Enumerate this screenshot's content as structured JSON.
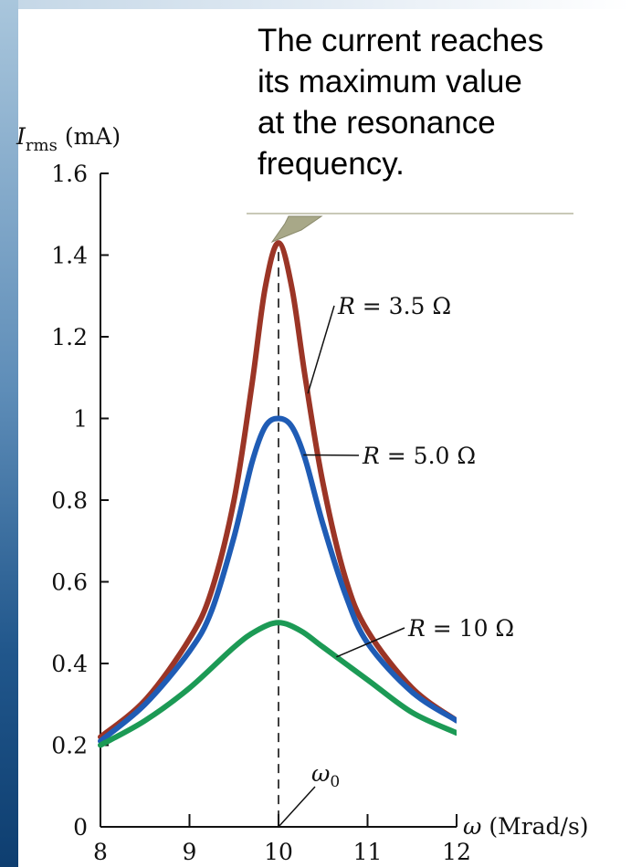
{
  "chart_data": {
    "type": "line",
    "xlabel": "ω (Mrad/s)",
    "ylabel_symbol": "I",
    "ylabel_sub": "rms",
    "ylabel_unit": "(mA)",
    "xlim": [
      8,
      12
    ],
    "ylim": [
      0,
      1.6
    ],
    "xticks": [
      8,
      9,
      10,
      11,
      12
    ],
    "xtick_labels": [
      "8",
      "9",
      "10",
      "11",
      "12"
    ],
    "yticks": [
      0,
      0.2,
      0.4,
      0.6,
      0.8,
      1,
      1.2,
      1.4,
      1.6
    ],
    "ytick_labels": [
      "0",
      "0.2",
      "0.4",
      "0.6",
      "0.8",
      "1",
      "1.2",
      "1.4",
      "1.6"
    ],
    "grid": false,
    "resonance": {
      "x": 10,
      "label_symbol": "ω",
      "label_sub": "0"
    },
    "series": [
      {
        "name": "R = 3.5 Ω",
        "color": "#9b3526",
        "x": [
          8,
          8.5,
          9,
          9.25,
          9.5,
          9.7,
          9.85,
          10,
          10.15,
          10.3,
          10.5,
          10.75,
          11,
          11.5,
          12
        ],
        "values": [
          0.22,
          0.31,
          0.46,
          0.58,
          0.8,
          1.08,
          1.32,
          1.43,
          1.32,
          1.1,
          0.84,
          0.61,
          0.48,
          0.34,
          0.26
        ]
      },
      {
        "name": "R = 5.0 Ω",
        "color": "#1f5cb5",
        "x": [
          8,
          8.5,
          9,
          9.25,
          9.5,
          9.7,
          9.85,
          10,
          10.15,
          10.3,
          10.5,
          10.75,
          11,
          11.5,
          12
        ],
        "values": [
          0.21,
          0.3,
          0.43,
          0.53,
          0.71,
          0.89,
          0.98,
          1.0,
          0.98,
          0.9,
          0.74,
          0.57,
          0.45,
          0.33,
          0.26
        ]
      },
      {
        "name": "R = 10 Ω",
        "color": "#1c9a55",
        "x": [
          8,
          8.5,
          9,
          9.5,
          9.75,
          10,
          10.25,
          10.5,
          11,
          11.5,
          12
        ],
        "values": [
          0.2,
          0.26,
          0.34,
          0.44,
          0.48,
          0.5,
          0.48,
          0.44,
          0.36,
          0.28,
          0.23
        ]
      }
    ],
    "annotation_lines": [
      "The current reaches",
      "its maximum value",
      "at the resonance",
      "frequency."
    ]
  }
}
